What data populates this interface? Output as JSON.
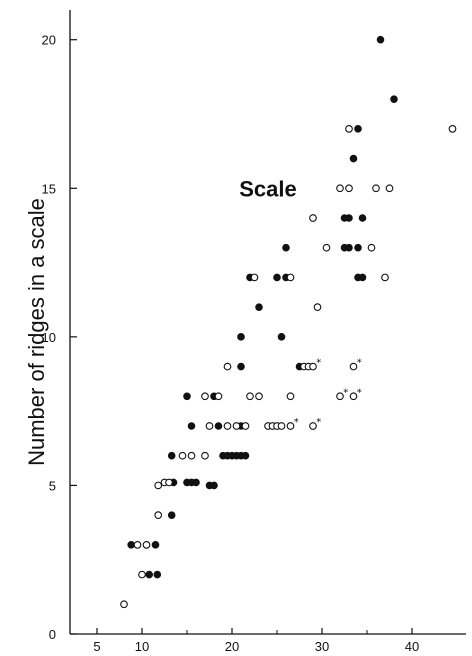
{
  "chart_data": {
    "type": "scatter",
    "title": "",
    "xlabel": "",
    "ylabel": "Number of ridges in a scale",
    "annotation": "Scale",
    "xlim": [
      2,
      46
    ],
    "ylim": [
      0,
      21
    ],
    "x_ticks": [
      5,
      10,
      20,
      30,
      40
    ],
    "x_tick_labels": [
      "5",
      "10",
      "20",
      "30",
      "40"
    ],
    "x_minor_ticks": [
      15,
      25,
      35
    ],
    "y_ticks": [
      0,
      5,
      10,
      15,
      20
    ],
    "y_tick_labels": [
      "0",
      "5",
      "10",
      "15",
      "20"
    ],
    "grid": false,
    "legend": "none",
    "marker_color": "#111111",
    "series": [
      {
        "marker": "filled-circle",
        "points": [
          [
            8.8,
            3
          ],
          [
            10.8,
            2
          ],
          [
            11.7,
            2
          ],
          [
            11.5,
            3
          ],
          [
            13.3,
            4
          ],
          [
            13.3,
            6
          ],
          [
            13.5,
            5.1
          ],
          [
            15,
            5.1
          ],
          [
            15.5,
            5.1
          ],
          [
            16,
            5.1
          ],
          [
            17.5,
            5
          ],
          [
            18,
            5
          ],
          [
            15,
            8
          ],
          [
            15.5,
            7
          ],
          [
            18.5,
            7
          ],
          [
            18,
            8
          ],
          [
            19,
            6
          ],
          [
            19.5,
            6
          ],
          [
            20,
            6
          ],
          [
            20.5,
            6
          ],
          [
            21,
            6
          ],
          [
            21.5,
            6
          ],
          [
            21,
            7
          ],
          [
            21,
            9
          ],
          [
            21,
            10
          ],
          [
            22,
            12
          ],
          [
            23,
            11
          ],
          [
            25,
            12
          ],
          [
            25.5,
            10
          ],
          [
            26,
            13
          ],
          [
            26,
            12
          ],
          [
            27.5,
            9
          ],
          [
            32.5,
            13
          ],
          [
            32.5,
            14
          ],
          [
            33,
            14
          ],
          [
            33,
            13
          ],
          [
            33.5,
            16
          ],
          [
            34,
            17
          ],
          [
            34,
            13
          ],
          [
            34,
            12
          ],
          [
            34.5,
            14
          ],
          [
            34.5,
            12
          ],
          [
            36.5,
            20
          ],
          [
            38,
            18
          ]
        ]
      },
      {
        "marker": "open-circle",
        "points": [
          [
            8,
            1
          ],
          [
            9.5,
            3
          ],
          [
            10,
            2
          ],
          [
            10.5,
            3
          ],
          [
            11.8,
            4
          ],
          [
            11.8,
            5
          ],
          [
            12.5,
            5.1
          ],
          [
            13,
            5.1
          ],
          [
            14.5,
            6
          ],
          [
            15.5,
            6
          ],
          [
            17,
            6
          ],
          [
            17,
            8
          ],
          [
            17.5,
            7
          ],
          [
            18.5,
            8
          ],
          [
            19.5,
            9
          ],
          [
            19.5,
            7
          ],
          [
            20.5,
            7
          ],
          [
            21.5,
            7
          ],
          [
            22,
            8
          ],
          [
            22.5,
            12
          ],
          [
            23,
            8
          ],
          [
            24,
            7
          ],
          [
            24.5,
            7
          ],
          [
            25,
            7
          ],
          [
            25.5,
            7
          ],
          [
            26.5,
            12
          ],
          [
            26.5,
            8
          ],
          [
            28,
            9
          ],
          [
            28.5,
            9
          ],
          [
            29,
            14
          ],
          [
            29.5,
            11
          ],
          [
            30.5,
            13
          ],
          [
            32,
            15
          ],
          [
            33,
            17
          ],
          [
            33,
            15
          ],
          [
            35.5,
            13
          ],
          [
            36,
            15
          ],
          [
            37,
            12
          ],
          [
            37.5,
            15
          ],
          [
            44.5,
            17
          ]
        ]
      },
      {
        "marker": "open-circle-asterisk",
        "points": [
          [
            26.5,
            7
          ],
          [
            29,
            7
          ],
          [
            32,
            8
          ],
          [
            33.5,
            8
          ],
          [
            33.5,
            9
          ],
          [
            29,
            9
          ]
        ]
      }
    ]
  }
}
